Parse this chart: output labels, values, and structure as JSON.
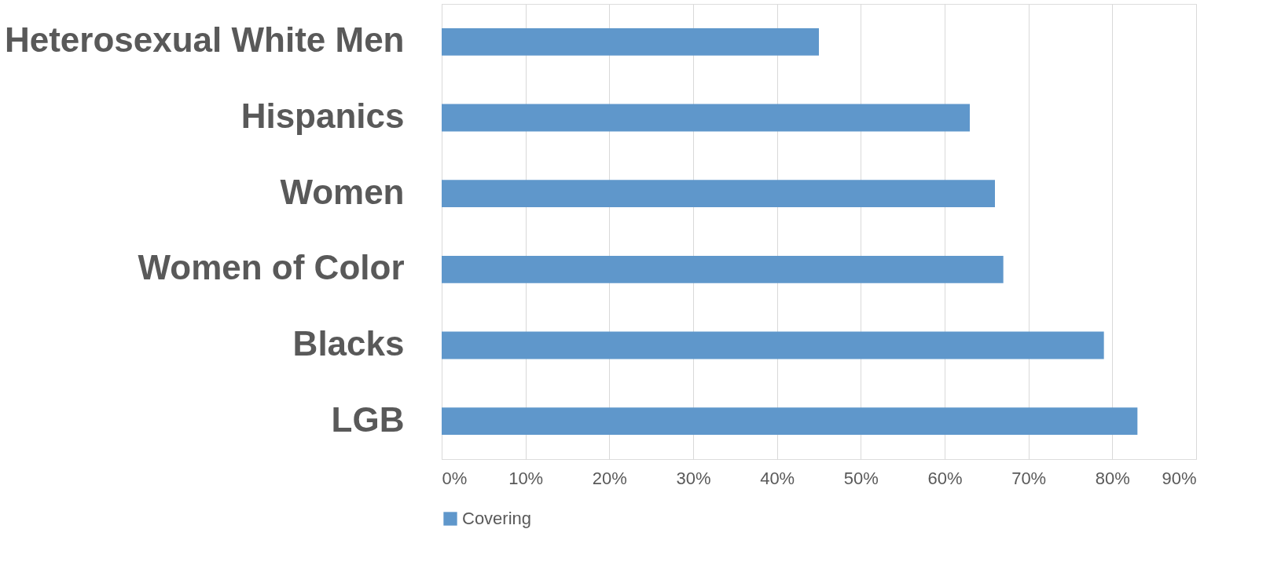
{
  "chart_data": {
    "type": "bar",
    "orientation": "horizontal",
    "categories": [
      "Heterosexual White Men",
      "Hispanics",
      "Women",
      "Women of Color",
      "Blacks",
      "LGB"
    ],
    "series": [
      {
        "name": "Covering",
        "color": "#5f97cb",
        "values": [
          45,
          63,
          66,
          67,
          79,
          83
        ]
      }
    ],
    "xlim": [
      0,
      90
    ],
    "xticks": [
      {
        "value": 0,
        "label": "0%"
      },
      {
        "value": 10,
        "label": "10%"
      },
      {
        "value": 20,
        "label": "20%"
      },
      {
        "value": 30,
        "label": "30%"
      },
      {
        "value": 40,
        "label": "40%"
      },
      {
        "value": 50,
        "label": "50%"
      },
      {
        "value": 60,
        "label": "60%"
      },
      {
        "value": 70,
        "label": "70%"
      },
      {
        "value": 80,
        "label": "80%"
      },
      {
        "value": 90,
        "label": "90%"
      }
    ],
    "grid": "x",
    "legend": "bottom"
  }
}
